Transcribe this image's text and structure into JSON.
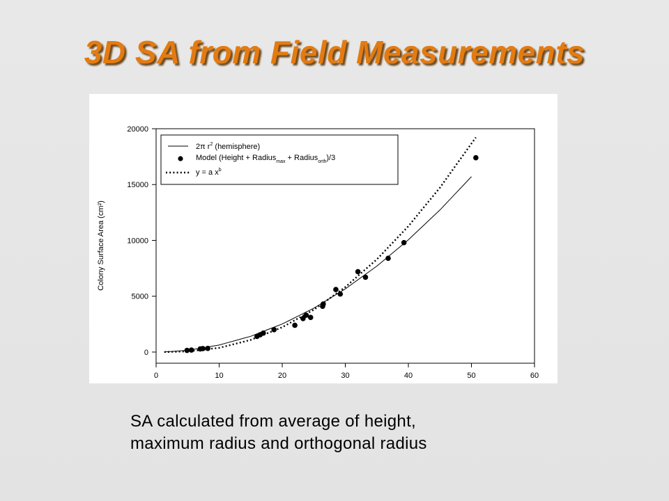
{
  "slide": {
    "title": "3D SA from Field Measurements",
    "caption_line1": "SA calculated from average of height,",
    "caption_line2": "maximum radius and orthogonal radius",
    "title_color": "#e37b12"
  },
  "chart_data": {
    "type": "scatter",
    "title": "",
    "xlabel": "",
    "ylabel": "Colony Surface Area (cm²)",
    "xlim": [
      0,
      60
    ],
    "ylim": [
      -1000,
      20000
    ],
    "xticks": [
      0,
      10,
      20,
      30,
      40,
      50,
      60
    ],
    "yticks": [
      0,
      5000,
      10000,
      15000,
      20000
    ],
    "grid": false,
    "legend_position": "top-left",
    "legend": {
      "hemisphere": {
        "pre": "2π r",
        "sup": "2",
        "post": " (hemisphere)"
      },
      "model": {
        "pre": "Model (Height + Radius",
        "sub1": "max",
        "mid": " + Radius",
        "sub2": "orth",
        "post": ")/3"
      },
      "fit": {
        "pre": "y  = a x",
        "sup": "b"
      }
    },
    "series": [
      {
        "name": "Model (Height + Radius max + Radius orth)/3",
        "kind": "points",
        "x": [
          4.9,
          5.6,
          7.0,
          7.4,
          8.2,
          16.0,
          16.5,
          17.0,
          18.7,
          22.0,
          23.3,
          23.8,
          24.5,
          26.4,
          26.5,
          28.5,
          29.2,
          32.0,
          33.2,
          36.8,
          39.3,
          50.7
        ],
        "y": [
          150,
          180,
          280,
          310,
          330,
          1400,
          1550,
          1700,
          2000,
          2400,
          3000,
          3300,
          3100,
          4100,
          4300,
          5600,
          5200,
          7200,
          6700,
          8400,
          9800,
          17400
        ]
      },
      {
        "name": "2π r² (hemisphere)",
        "kind": "curve",
        "x": [
          1.3,
          5,
          10,
          15,
          20,
          25,
          30,
          35,
          40,
          45,
          50
        ],
        "y": [
          10,
          157,
          628,
          1414,
          2513,
          3927,
          5655,
          7697,
          10053,
          12723,
          15708
        ]
      },
      {
        "name": "y = a x^b",
        "kind": "dotted",
        "x": [
          1.3,
          5,
          10,
          15,
          20,
          25,
          30,
          35,
          40,
          45,
          50.7
        ],
        "y": [
          1,
          60,
          375,
          1086,
          2219,
          3791,
          5816,
          8305,
          11271,
          14721,
          19218
        ]
      }
    ]
  }
}
